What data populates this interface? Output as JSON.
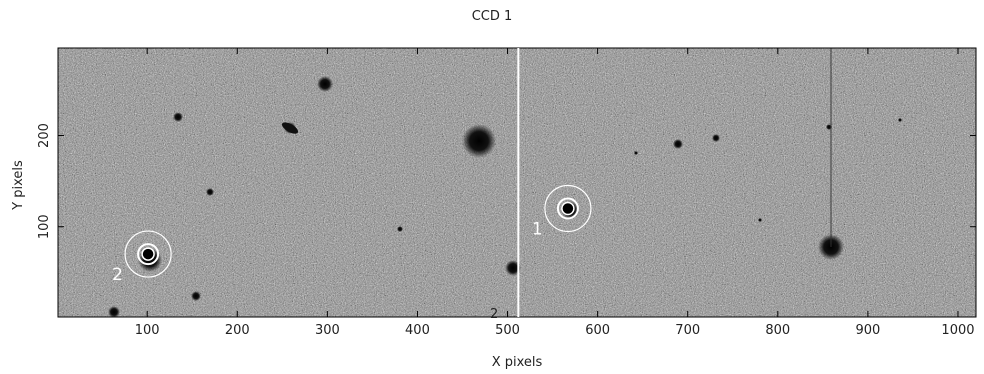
{
  "title": "CCD 1",
  "xlabel": "X pixels",
  "ylabel": "Y pixels",
  "x_ticks": [
    "100",
    "200",
    "300",
    "400",
    "500",
    "600",
    "700",
    "800",
    "900",
    "1000"
  ],
  "y_ticks": [
    "100",
    "200"
  ],
  "x_range": [
    1,
    1020
  ],
  "y_range": [
    1,
    296
  ],
  "panel_split_x": 512,
  "targets": [
    {
      "label": "1",
      "x": 567,
      "y": 120
    },
    {
      "label": "2",
      "x": 101,
      "y": 70
    }
  ],
  "corner_label": "2",
  "colors": {
    "image_mid": "#8a8a8a",
    "ring": "#ffffff",
    "star": "#0d0d0d"
  }
}
